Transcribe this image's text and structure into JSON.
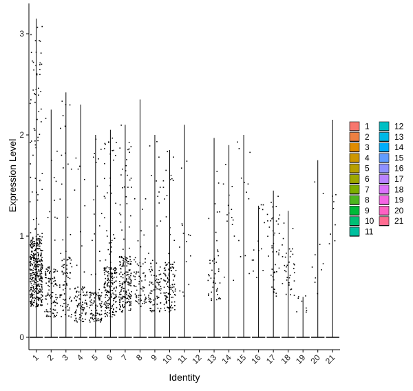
{
  "chart_data": {
    "type": "violin",
    "xlabel": "Identity",
    "ylabel": "Expression Level",
    "categories": [
      "1",
      "2",
      "3",
      "4",
      "5",
      "6",
      "7",
      "8",
      "9",
      "10",
      "11",
      "12",
      "13",
      "14",
      "15",
      "16",
      "17",
      "18",
      "19",
      "20",
      "21"
    ],
    "ylim": [
      -0.12,
      3.32
    ],
    "yticks": [
      0,
      1,
      2,
      3
    ],
    "max_values": [
      3.15,
      2.25,
      2.42,
      2.3,
      2.0,
      2.05,
      2.1,
      2.35,
      2.0,
      1.85,
      2.1,
      0.0,
      1.97,
      1.9,
      2.0,
      1.3,
      1.45,
      1.25,
      0.4,
      1.75,
      2.15
    ],
    "point_counts": [
      420,
      110,
      90,
      90,
      110,
      200,
      200,
      70,
      90,
      120,
      15,
      0,
      45,
      15,
      12,
      14,
      45,
      35,
      8,
      10,
      8
    ],
    "point_bands": [
      [
        0.3,
        1.0
      ],
      [
        0.2,
        0.7
      ],
      [
        0.2,
        0.8
      ],
      [
        0.15,
        0.5
      ],
      [
        0.15,
        0.45
      ],
      [
        0.2,
        0.7
      ],
      [
        0.25,
        0.8
      ],
      [
        0.3,
        0.8
      ],
      [
        0.25,
        0.7
      ],
      [
        0.25,
        0.75
      ],
      [
        0.4,
        1.2
      ],
      [
        0,
        0
      ],
      [
        0.35,
        0.8
      ],
      [
        0.5,
        1.6
      ],
      [
        0.5,
        1.8
      ],
      [
        0.4,
        1.3
      ],
      [
        0.4,
        1.2
      ],
      [
        0.4,
        1.0
      ],
      [
        0.2,
        0.4
      ],
      [
        0.4,
        1.1
      ],
      [
        0.5,
        1.5
      ]
    ],
    "legend_colors": [
      "#F8766D",
      "#EE8042",
      "#E08B00",
      "#CD9600",
      "#B79F00",
      "#9DA700",
      "#7CAE00",
      "#4CB61F",
      "#00BA38",
      "#00BF74",
      "#00C19F",
      "#00BFC4",
      "#00B8E5",
      "#00ADFA",
      "#619CFF",
      "#8F91FF",
      "#B983FF",
      "#DB72FB",
      "#F564E3",
      "#FF61C3",
      "#FF6C91"
    ],
    "legend_position": "right",
    "grid": false
  }
}
